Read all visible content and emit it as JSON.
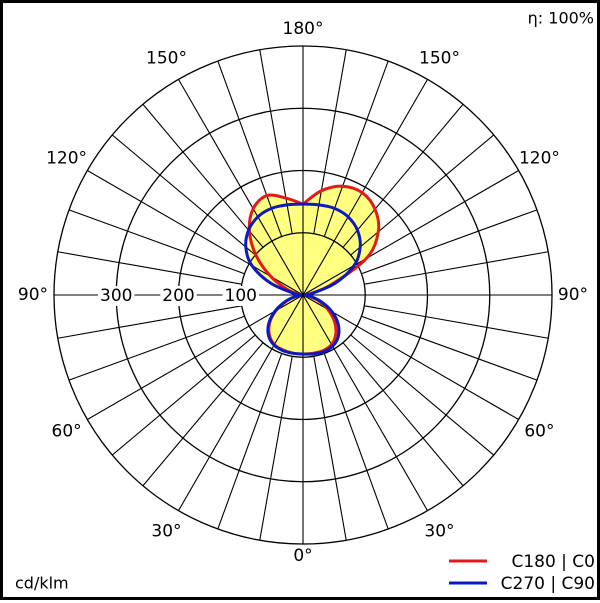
{
  "chart_data": {
    "type": "polar",
    "efficiency_label": "η: 100%",
    "unit_label": "cd/klm",
    "radial_ticks": [
      "100",
      "200",
      "300"
    ],
    "radial_values": [
      100,
      200,
      300
    ],
    "rmax": 400,
    "angle_labels": [
      {
        "text": "180°",
        "angle": 180,
        "side": "center"
      },
      {
        "text": "150°",
        "angle": 150,
        "side": "left"
      },
      {
        "text": "150°",
        "angle": 150,
        "side": "right"
      },
      {
        "text": "120°",
        "angle": 120,
        "side": "left"
      },
      {
        "text": "120°",
        "angle": 120,
        "side": "right"
      },
      {
        "text": "90°",
        "angle": 90,
        "side": "left"
      },
      {
        "text": "90°",
        "angle": 90,
        "side": "right"
      },
      {
        "text": "60°",
        "angle": 60,
        "side": "left"
      },
      {
        "text": "60°",
        "angle": 60,
        "side": "right"
      },
      {
        "text": "30°",
        "angle": 30,
        "side": "left"
      },
      {
        "text": "30°",
        "angle": 30,
        "side": "right"
      },
      {
        "text": "0°",
        "angle": 0,
        "side": "center"
      }
    ],
    "grid": true,
    "legend": "bottom-right",
    "series": [
      {
        "name": "C180 | C0",
        "color": "#e31a1c",
        "left_half": [
          [
            0,
            95
          ],
          [
            10,
            95
          ],
          [
            20,
            94
          ],
          [
            30,
            92
          ],
          [
            40,
            84
          ],
          [
            50,
            70
          ],
          [
            60,
            50
          ],
          [
            70,
            28
          ],
          [
            80,
            10
          ],
          [
            90,
            4
          ],
          [
            100,
            8
          ],
          [
            110,
            28
          ],
          [
            120,
            60
          ],
          [
            130,
            98
          ],
          [
            140,
            134
          ],
          [
            150,
            160
          ],
          [
            160,
            170
          ],
          [
            170,
            158
          ],
          [
            180,
            146
          ]
        ],
        "right_half": [
          [
            0,
            95
          ],
          [
            10,
            95
          ],
          [
            20,
            95
          ],
          [
            30,
            92
          ],
          [
            40,
            82
          ],
          [
            50,
            66
          ],
          [
            60,
            46
          ],
          [
            70,
            26
          ],
          [
            80,
            10
          ],
          [
            90,
            4
          ],
          [
            100,
            12
          ],
          [
            110,
            48
          ],
          [
            120,
            118
          ],
          [
            130,
            158
          ],
          [
            140,
            180
          ],
          [
            150,
            190
          ],
          [
            160,
            186
          ],
          [
            170,
            170
          ],
          [
            180,
            146
          ]
        ]
      },
      {
        "name": "C270 | C90",
        "color": "#0a1bc2",
        "left_half": [
          [
            0,
            95
          ],
          [
            10,
            95
          ],
          [
            20,
            95
          ],
          [
            30,
            93
          ],
          [
            40,
            86
          ],
          [
            50,
            72
          ],
          [
            60,
            52
          ],
          [
            70,
            30
          ],
          [
            80,
            12
          ],
          [
            90,
            4
          ],
          [
            100,
            15
          ],
          [
            110,
            55
          ],
          [
            120,
            95
          ],
          [
            130,
            120
          ],
          [
            140,
            136
          ],
          [
            150,
            145
          ],
          [
            160,
            148
          ],
          [
            170,
            147
          ],
          [
            180,
            146
          ]
        ],
        "right_half": [
          [
            0,
            95
          ],
          [
            10,
            96
          ],
          [
            20,
            97
          ],
          [
            30,
            95
          ],
          [
            40,
            88
          ],
          [
            50,
            74
          ],
          [
            60,
            54
          ],
          [
            70,
            31
          ],
          [
            80,
            12
          ],
          [
            90,
            4
          ],
          [
            100,
            15
          ],
          [
            110,
            55
          ],
          [
            120,
            95
          ],
          [
            130,
            120
          ],
          [
            140,
            136
          ],
          [
            150,
            145
          ],
          [
            160,
            148
          ],
          [
            170,
            147
          ],
          [
            180,
            146
          ]
        ]
      }
    ]
  }
}
